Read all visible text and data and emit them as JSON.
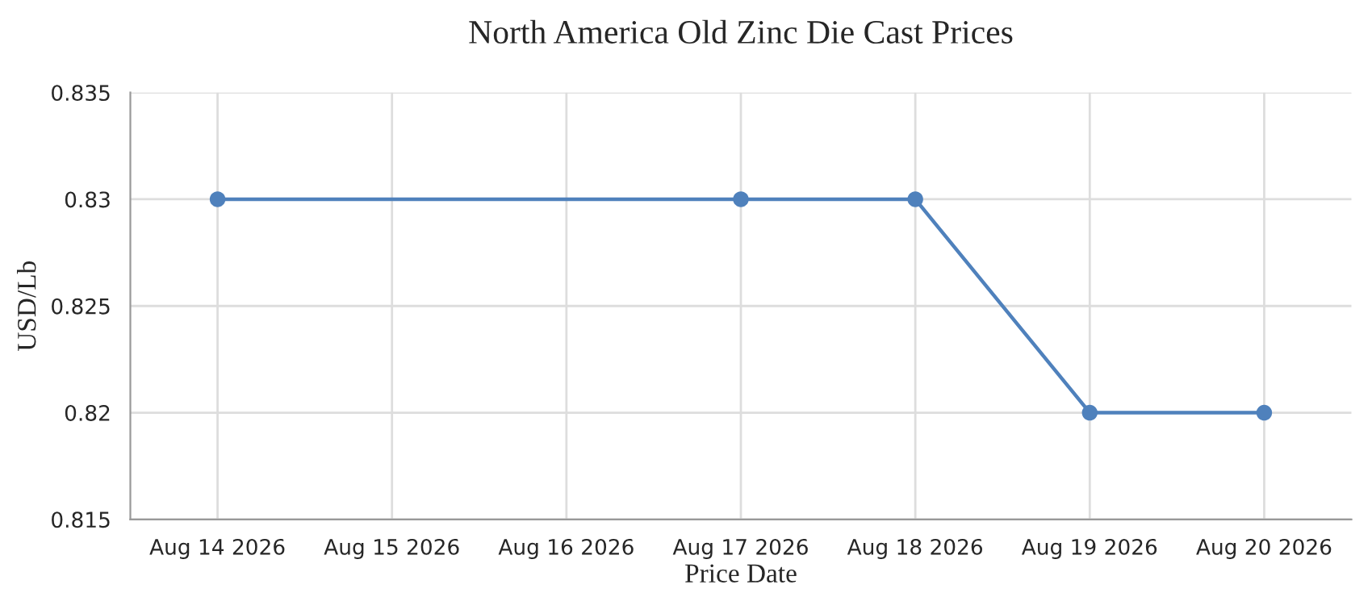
{
  "chart_data": {
    "type": "line",
    "title": "North America Old Zinc Die Cast Prices",
    "xlabel": "Price Date",
    "ylabel": "USD/Lb",
    "x": [
      "2026-08-14",
      "2026-08-17",
      "2026-08-18",
      "2026-08-19",
      "2026-08-20"
    ],
    "series": [
      {
        "color": "#4f81bc",
        "values": [
          0.83,
          0.83,
          0.83,
          0.82,
          0.82
        ]
      }
    ],
    "xlim": [
      "2026-08-13T12:00",
      "2026-08-20T12:00"
    ],
    "xticks": [
      {
        "value": "2026-08-14",
        "label": "Aug 14 2026"
      },
      {
        "value": "2026-08-15",
        "label": "Aug 15 2026"
      },
      {
        "value": "2026-08-16",
        "label": "Aug 16 2026"
      },
      {
        "value": "2026-08-17",
        "label": "Aug 17 2026"
      },
      {
        "value": "2026-08-18",
        "label": "Aug 18 2026"
      },
      {
        "value": "2026-08-19",
        "label": "Aug 19 2026"
      },
      {
        "value": "2026-08-20",
        "label": "Aug 20 2026"
      }
    ],
    "ylim": [
      0.815,
      0.835
    ],
    "yticks": [
      0.815,
      0.82,
      0.825,
      0.83,
      0.835
    ],
    "grid": true,
    "marker": "circle",
    "line_style": "solid"
  }
}
